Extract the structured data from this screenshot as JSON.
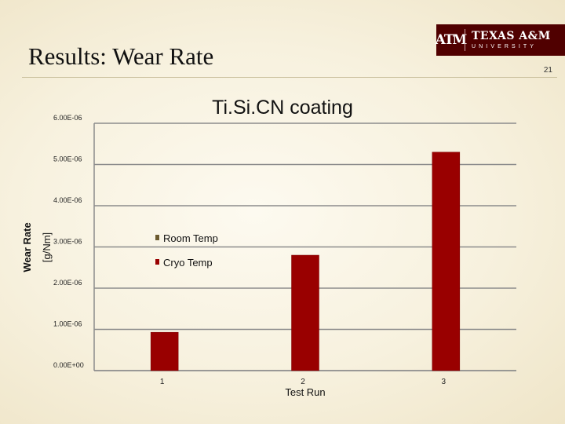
{
  "slide": {
    "title": "Results: Wear Rate",
    "page_number": "21"
  },
  "logo": {
    "mark": "ATM",
    "name": "TEXAS A&M",
    "subtitle": "UNIVERSITY"
  },
  "colors": {
    "bar": "#990000",
    "bar_edge": "#7a0000",
    "room_temp_marker": "#6b5a2e",
    "logo_bg": "#500000"
  },
  "chart_data": {
    "type": "bar",
    "title": "Ti.Si.CN coating",
    "xlabel": "Test Run",
    "ylabel_lines": [
      "Wear Rate",
      "[g/Nm]"
    ],
    "categories": [
      "1",
      "2",
      "3"
    ],
    "series": [
      {
        "name": "Room Temp",
        "values": [
          0,
          0,
          0
        ]
      },
      {
        "name": "Cryo Temp",
        "values": [
          9.3e-07,
          2.8e-06,
          5.3e-06
        ]
      }
    ],
    "ylim": [
      0,
      6e-06
    ],
    "yticks": [
      "0.00E+00",
      "1.00E-06",
      "2.00E-06",
      "3.00E-06",
      "4.00E-06",
      "5.00E-06",
      "6.00E-06"
    ],
    "grid": true,
    "legend_position": "center"
  }
}
